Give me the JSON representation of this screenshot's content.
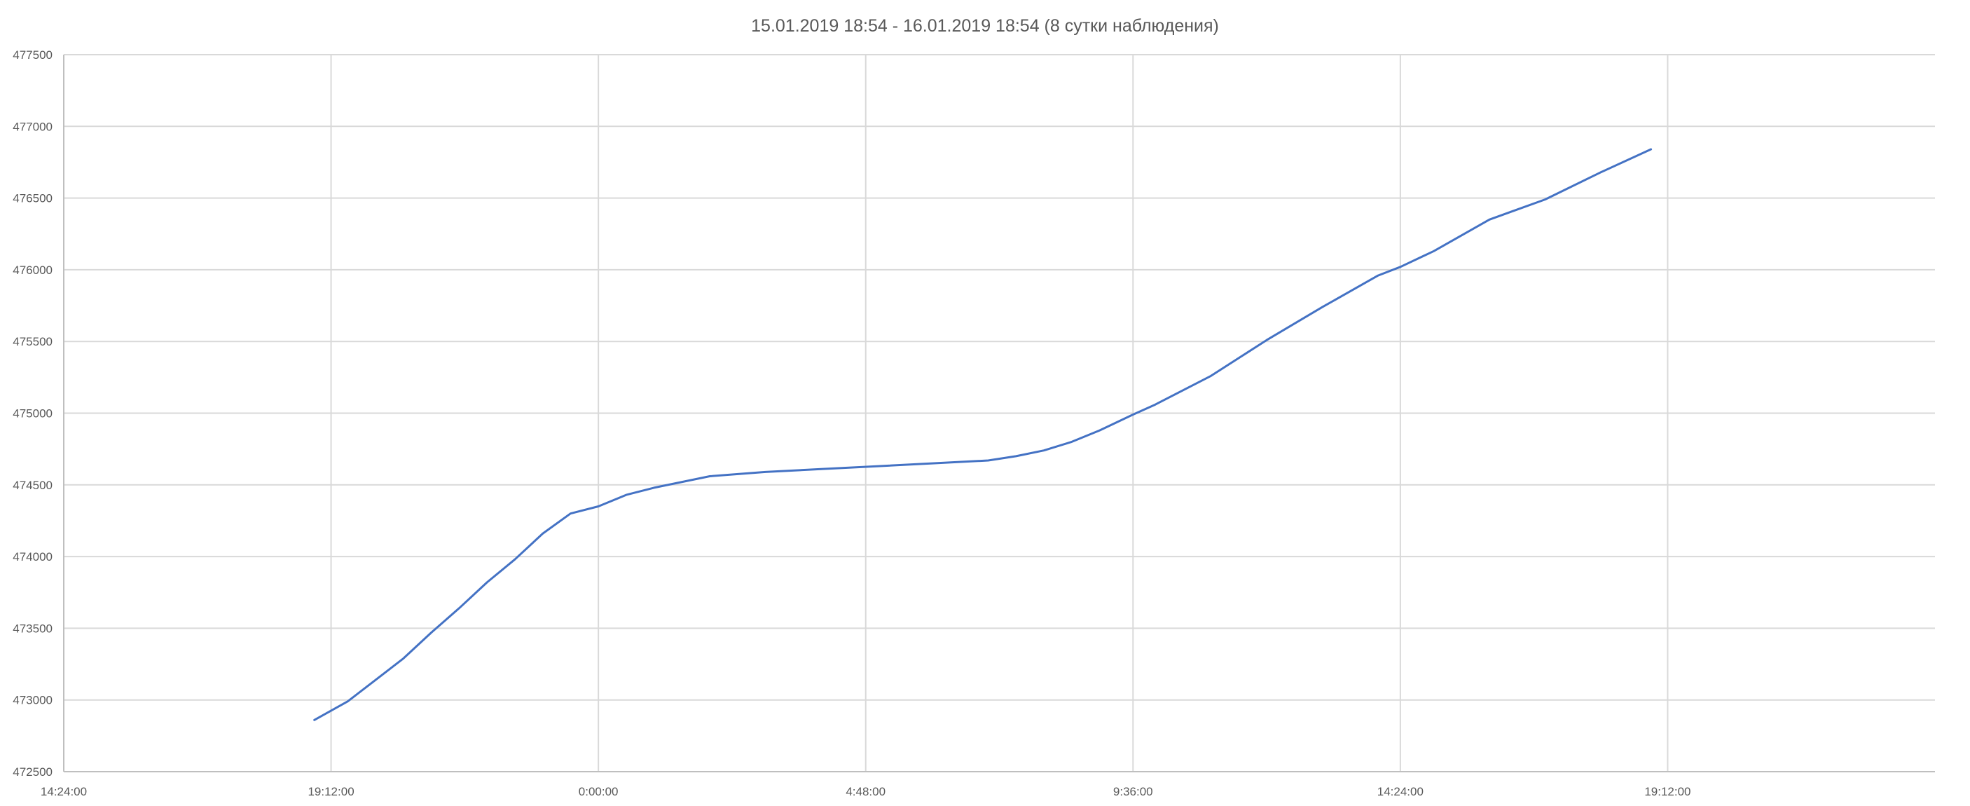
{
  "chart_data": {
    "type": "line",
    "title": "15.01.2019 18:54 - 16.01.2019 18:54 (8 сутки наблюдения)",
    "xlabel": "",
    "ylabel": "",
    "x_axis": {
      "min": "2019-01-15 14:24",
      "max": "2019-01-16 19:12",
      "tick_labels": [
        "14:24:00",
        "19:12:00",
        "0:00:00",
        "4:48:00",
        "9:36:00",
        "14:24:00",
        "19:12:00"
      ]
    },
    "ylim": [
      472500,
      477500
    ],
    "y_ticks": [
      472500,
      473000,
      473500,
      474000,
      474500,
      475000,
      475500,
      476000,
      476500,
      477000,
      477500
    ],
    "grid": true,
    "legend": "none",
    "line_color": "#4472c4",
    "series": [
      {
        "x": [
          "2019-01-15 18:54",
          "2019-01-15 19:30",
          "2019-01-15 20:00",
          "2019-01-15 20:30",
          "2019-01-15 21:00",
          "2019-01-15 21:30",
          "2019-01-15 22:00",
          "2019-01-15 22:30",
          "2019-01-15 23:00",
          "2019-01-15 23:30",
          "2019-01-16 00:00",
          "2019-01-16 00:30",
          "2019-01-16 01:00",
          "2019-01-16 02:00",
          "2019-01-16 03:00",
          "2019-01-16 04:00",
          "2019-01-16 05:00",
          "2019-01-16 06:00",
          "2019-01-16 07:00",
          "2019-01-16 07:30",
          "2019-01-16 08:00",
          "2019-01-16 08:30",
          "2019-01-16 09:00",
          "2019-01-16 09:36",
          "2019-01-16 10:00",
          "2019-01-16 11:00",
          "2019-01-16 12:00",
          "2019-01-16 13:00",
          "2019-01-16 14:00",
          "2019-01-16 14:24",
          "2019-01-16 15:00",
          "2019-01-16 16:00",
          "2019-01-16 17:00",
          "2019-01-16 18:00",
          "2019-01-16 18:54"
        ],
        "values": [
          472860,
          472990,
          473140,
          473290,
          473470,
          473640,
          473820,
          473980,
          474160,
          474300,
          474350,
          474430,
          474480,
          474560,
          474590,
          474610,
          474630,
          474650,
          474670,
          474700,
          474740,
          474800,
          474880,
          474990,
          475060,
          475260,
          475510,
          475740,
          475960,
          476020,
          476130,
          476350,
          476490,
          476680,
          476840
        ]
      }
    ]
  }
}
